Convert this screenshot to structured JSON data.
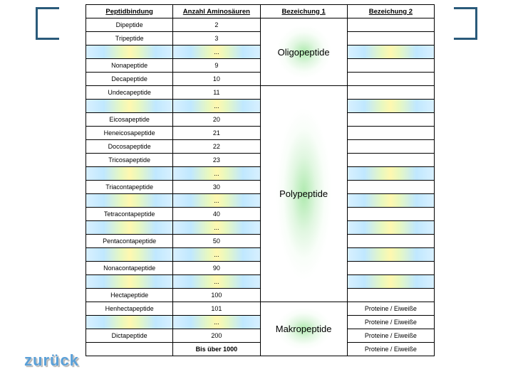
{
  "headers": [
    "Peptidbindung",
    "Anzahl Aminosäuren",
    "Bezeichung 1",
    "Bezeichung 2"
  ],
  "rows": [
    {
      "name": "Dipeptide",
      "count": "2"
    },
    {
      "name": "Tripeptide",
      "count": "3"
    },
    {
      "name": "",
      "count": "...",
      "grad": true
    },
    {
      "name": "Nonapeptide",
      "count": "9"
    },
    {
      "name": "Decapeptide",
      "count": "10"
    },
    {
      "name": "Undecapeptide",
      "count": "11"
    },
    {
      "name": "",
      "count": "...",
      "grad": true
    },
    {
      "name": "Eicosapeptide",
      "count": "20"
    },
    {
      "name": "Heneicosapeptide",
      "count": "21"
    },
    {
      "name": "Docosapeptide",
      "count": "22"
    },
    {
      "name": "Tricosapeptide",
      "count": "23"
    },
    {
      "name": "",
      "count": "...",
      "grad": true
    },
    {
      "name": "Triacontapeptide",
      "count": "30"
    },
    {
      "name": "",
      "count": "...",
      "grad": true
    },
    {
      "name": "Tetracontapeptide",
      "count": "40"
    },
    {
      "name": "",
      "count": "...",
      "grad": true
    },
    {
      "name": "Pentacontapeptide",
      "count": "50"
    },
    {
      "name": "",
      "count": "...",
      "grad": true
    },
    {
      "name": "Nonacontapeptide",
      "count": "90"
    },
    {
      "name": "",
      "count": "...",
      "grad": true
    },
    {
      "name": "Hectapeptide",
      "count": "100"
    },
    {
      "name": "Henhectapeptide",
      "count": "101",
      "b2": "Proteine / Eiweiße"
    },
    {
      "name": "",
      "count": "...",
      "grad": true,
      "b2": "Proteine / Eiweiße"
    },
    {
      "name": "Dictapeptide",
      "count": "200",
      "b2": "Proteine / Eiweiße"
    },
    {
      "name": "",
      "count": "Bis über 1000",
      "bold": true,
      "b2": "Proteine / Eiweiße"
    }
  ],
  "categories": [
    {
      "label": "Oligopeptide",
      "start": 0,
      "span": 5
    },
    {
      "label": "Polypeptide",
      "start": 5,
      "span": 16
    },
    {
      "label": "Makropeptide",
      "start": 21,
      "span": 4
    }
  ],
  "back_label": "zurück",
  "colors": {
    "bracket": "#2a5a7a",
    "glow_center": "rgba(160,230,160,0.85)",
    "back_text": "#5aa0d8"
  }
}
